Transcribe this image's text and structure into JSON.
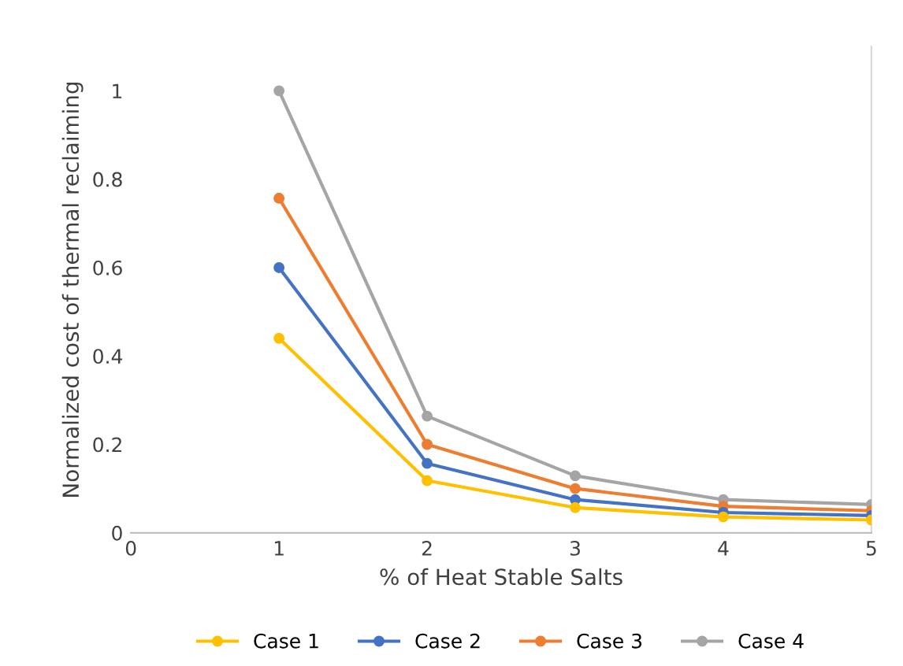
{
  "chart_data": {
    "type": "line",
    "xlabel": "% of Heat Stable Salts",
    "ylabel": "Normalized cost of thermal reclaiming",
    "x": [
      1,
      2,
      3,
      4,
      5
    ],
    "series": [
      {
        "name": "Case 1",
        "color": "#ffc000",
        "values": [
          0.44,
          0.118,
          0.057,
          0.036,
          0.029
        ]
      },
      {
        "name": "Case 2",
        "color": "#4472c4",
        "values": [
          0.6,
          0.157,
          0.075,
          0.046,
          0.039
        ]
      },
      {
        "name": "Case 3",
        "color": "#ed7d31",
        "values": [
          0.757,
          0.2,
          0.1,
          0.06,
          0.05
        ]
      },
      {
        "name": "Case 4",
        "color": "#a5a5a5",
        "values": [
          1.0,
          0.264,
          0.129,
          0.075,
          0.064
        ]
      }
    ],
    "xlim": [
      0,
      5
    ],
    "xticks": [
      0,
      1,
      2,
      3,
      4,
      5
    ],
    "ylim": [
      0,
      1.1
    ],
    "yticks": [
      0,
      0.2,
      0.4,
      0.6,
      0.8,
      1
    ],
    "grid": false,
    "legend": "bottom",
    "marker": "circle",
    "line_style": "solid"
  }
}
